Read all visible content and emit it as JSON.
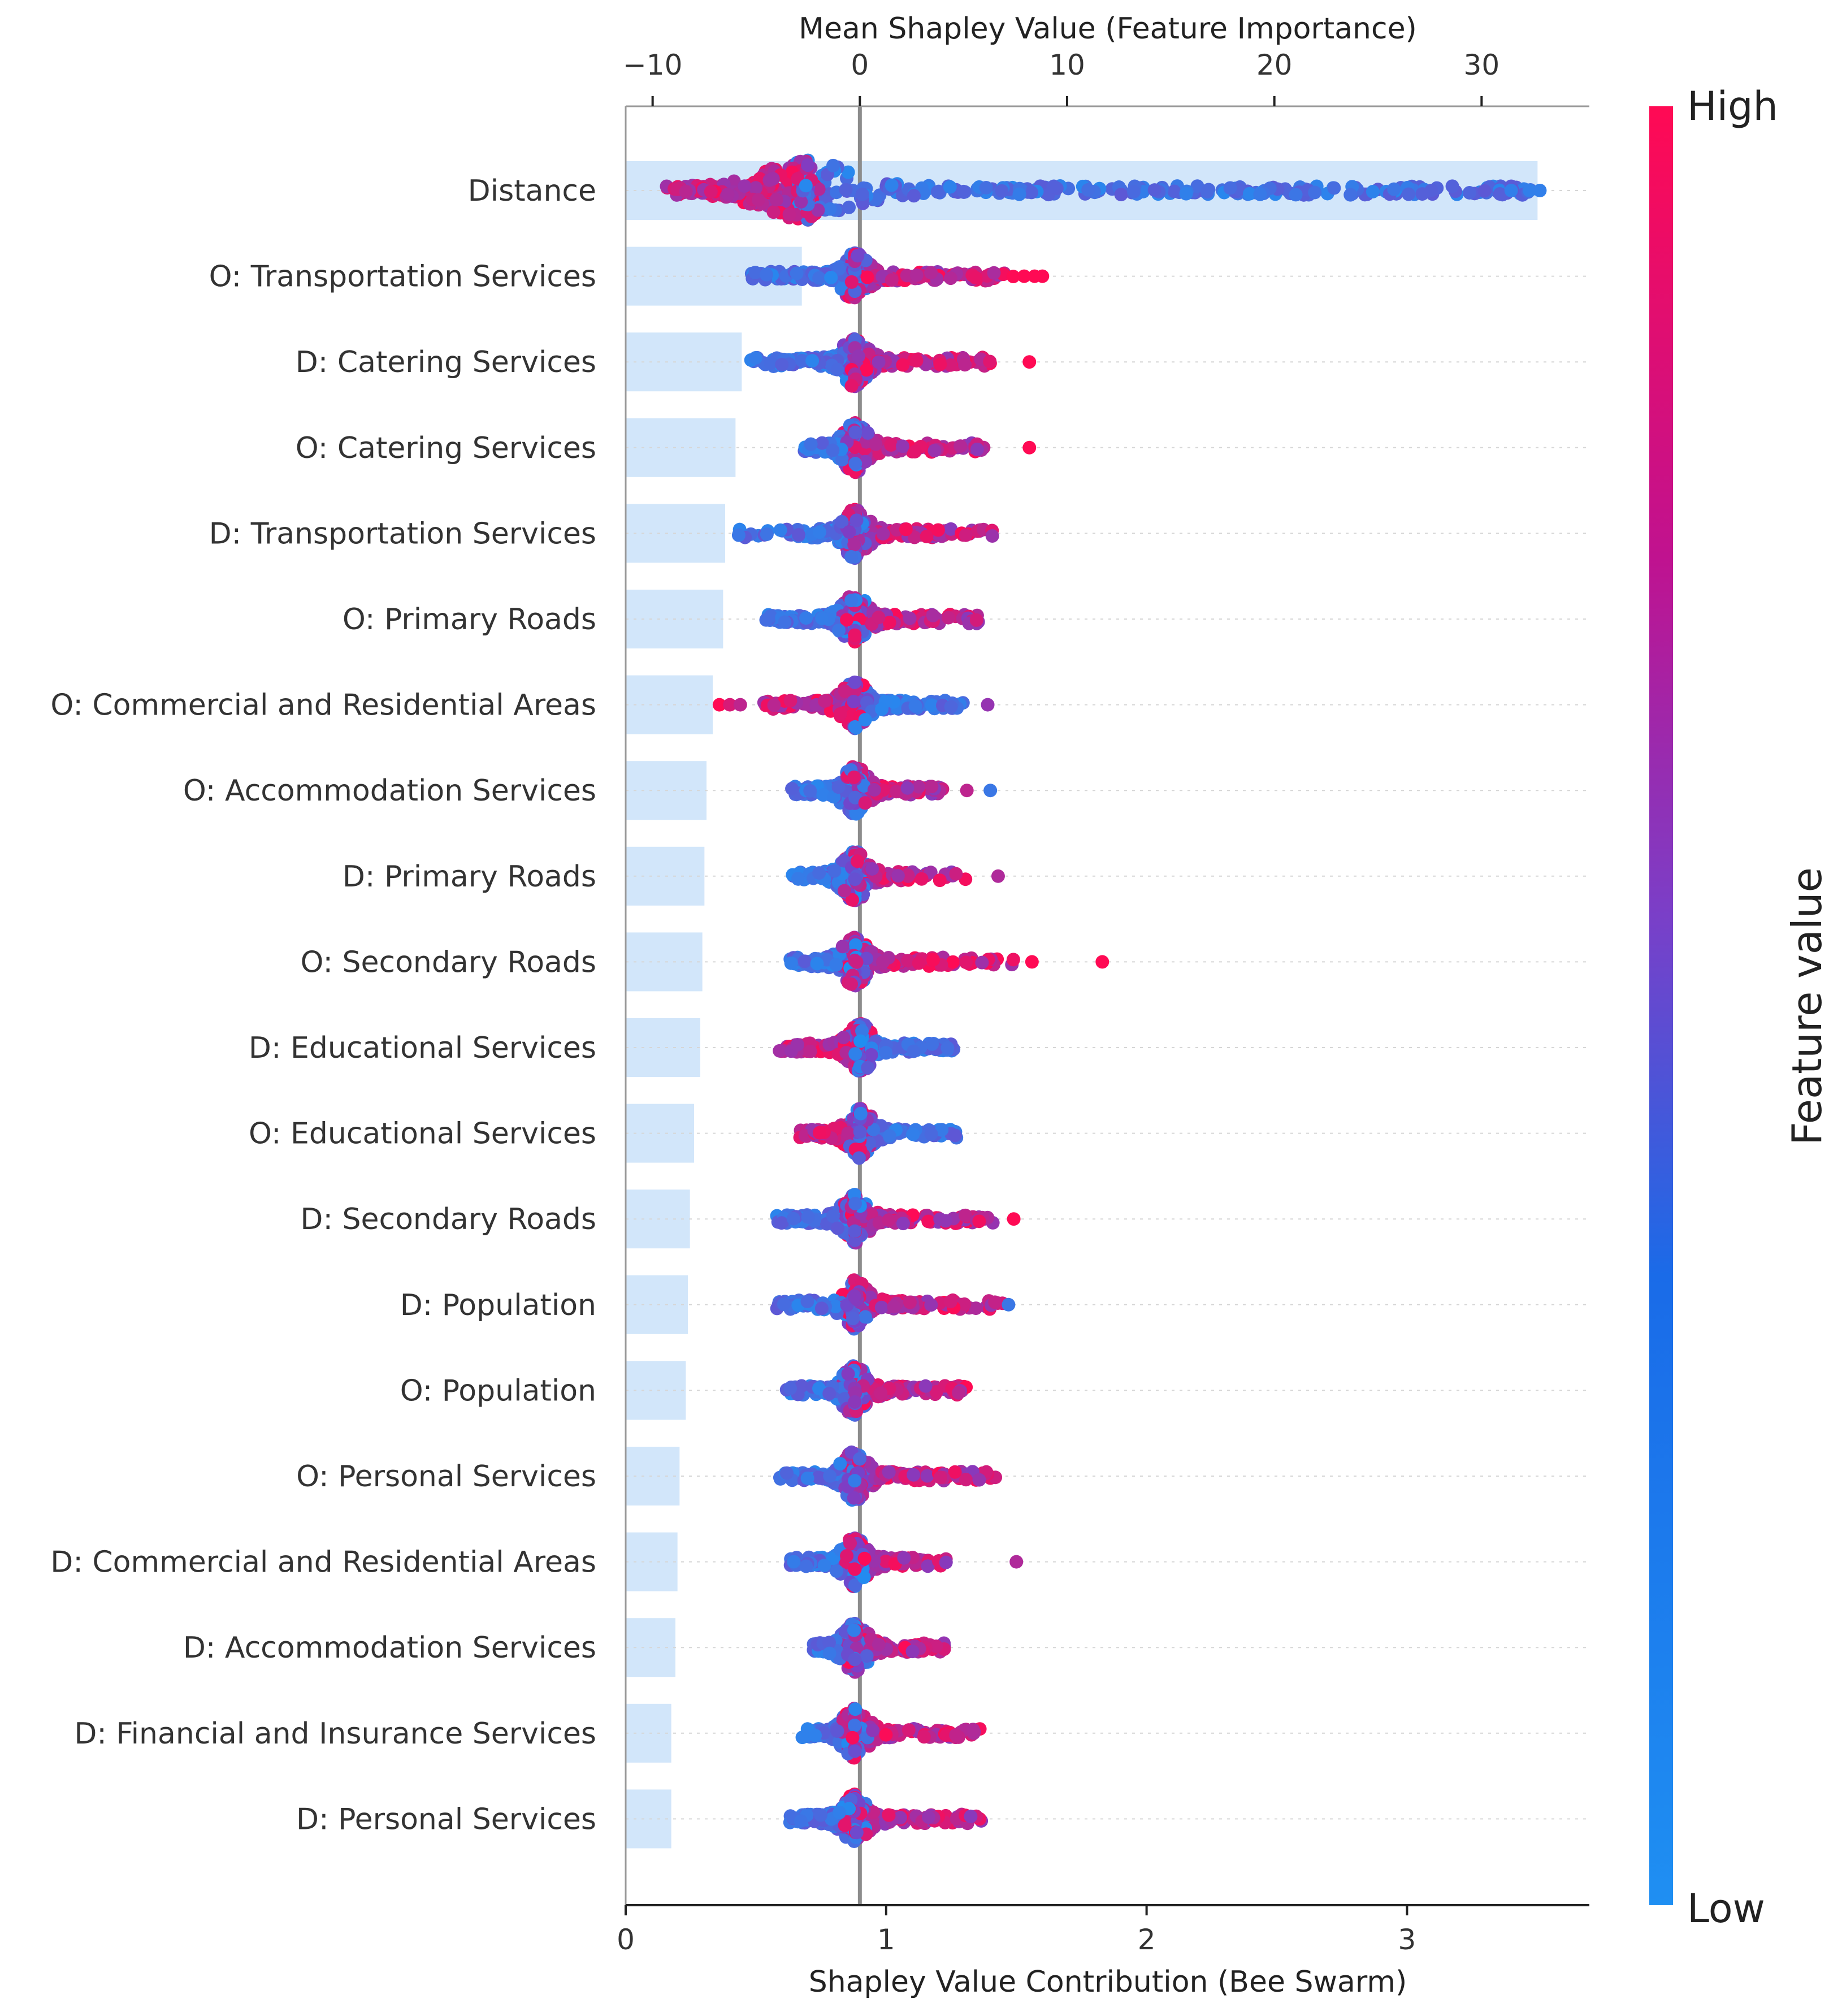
{
  "chart_data": {
    "type": "scatter",
    "subtype": "shap-beeswarm-with-mean-importance-bars",
    "bottom_axis": {
      "label": "Shapley Value Contribution (Bee Swarm)",
      "range": [
        0,
        3.7
      ],
      "ticks": [
        "0",
        "1",
        "2",
        "3"
      ]
    },
    "top_axis": {
      "label": "Mean Shapley Value (Feature Importance)",
      "range": [
        -11.3,
        35.2
      ],
      "ticks": [
        "−10",
        "0",
        "10",
        "20",
        "30"
      ]
    },
    "colorbar": {
      "title": "Feature value",
      "high_label": "High",
      "low_label": "Low",
      "low_color": "#1f8ff2",
      "mid_color": "#7a3fc8",
      "high_color": "#ff0a54"
    },
    "features": [
      {
        "name": "Distance",
        "mean_importance": 32.7,
        "spread_low": 0.15,
        "spread_high": 3.52,
        "center": 0.7,
        "high_dir": "left",
        "outliers": [
          {
            "v": 3.4,
            "c": 0.1
          },
          {
            "v": 3.47,
            "c": 0.1
          },
          {
            "v": 3.51,
            "c": 0.1
          }
        ]
      },
      {
        "name": "O: Transportation Services",
        "mean_importance": -2.8,
        "spread_low": 0.48,
        "spread_high": 1.49,
        "center": 0.88,
        "high_dir": "right",
        "outliers": [
          {
            "v": 1.53,
            "c": 1.0
          },
          {
            "v": 1.57,
            "c": 1.0
          },
          {
            "v": 1.6,
            "c": 1.0
          }
        ]
      },
      {
        "name": "D: Catering Services",
        "mean_importance": -5.7,
        "spread_low": 0.48,
        "spread_high": 1.4,
        "center": 0.88,
        "high_dir": "right",
        "outliers": [
          {
            "v": 1.55,
            "c": 1.0
          }
        ]
      },
      {
        "name": "O: Catering Services",
        "mean_importance": -6.0,
        "spread_low": 0.68,
        "spread_high": 1.4,
        "center": 0.88,
        "high_dir": "right",
        "outliers": [
          {
            "v": 1.55,
            "c": 1.0
          }
        ]
      },
      {
        "name": "D: Transportation Services",
        "mean_importance": -6.5,
        "spread_low": 0.43,
        "spread_high": 1.41,
        "center": 0.88,
        "high_dir": "right",
        "outliers": []
      },
      {
        "name": "O: Primary Roads",
        "mean_importance": -6.6,
        "spread_low": 0.53,
        "spread_high": 1.36,
        "center": 0.88,
        "high_dir": "right",
        "outliers": []
      },
      {
        "name": "O: Commercial and Residential Areas",
        "mean_importance": -7.1,
        "spread_low": 0.53,
        "spread_high": 1.3,
        "center": 0.88,
        "high_dir": "left",
        "outliers": [
          {
            "v": 0.36,
            "c": 1.0
          },
          {
            "v": 0.4,
            "c": 0.85
          },
          {
            "v": 0.44,
            "c": 0.75
          },
          {
            "v": 1.39,
            "c": 0.6
          }
        ]
      },
      {
        "name": "O: Accommodation Services",
        "mean_importance": -7.4,
        "spread_low": 0.63,
        "spread_high": 1.22,
        "center": 0.88,
        "high_dir": "right",
        "outliers": [
          {
            "v": 1.31,
            "c": 0.75
          },
          {
            "v": 1.4,
            "c": 0.15
          }
        ]
      },
      {
        "name": "D: Primary Roads",
        "mean_importance": -7.5,
        "spread_low": 0.63,
        "spread_high": 1.32,
        "center": 0.88,
        "high_dir": "right",
        "outliers": [
          {
            "v": 1.43,
            "c": 0.7
          }
        ]
      },
      {
        "name": "O: Secondary Roads",
        "mean_importance": -7.6,
        "spread_low": 0.63,
        "spread_high": 1.5,
        "center": 0.88,
        "high_dir": "right",
        "outliers": [
          {
            "v": 1.56,
            "c": 1.0
          },
          {
            "v": 1.83,
            "c": 1.0
          }
        ]
      },
      {
        "name": "D: Educational Services",
        "mean_importance": -7.7,
        "spread_low": 0.58,
        "spread_high": 1.27,
        "center": 0.9,
        "high_dir": "left",
        "outliers": []
      },
      {
        "name": "O: Educational Services",
        "mean_importance": -8.0,
        "spread_low": 0.65,
        "spread_high": 1.27,
        "center": 0.9,
        "high_dir": "left",
        "outliers": []
      },
      {
        "name": "D: Secondary Roads",
        "mean_importance": -8.2,
        "spread_low": 0.58,
        "spread_high": 1.41,
        "center": 0.88,
        "high_dir": "right",
        "outliers": [
          {
            "v": 1.49,
            "c": 1.0
          }
        ]
      },
      {
        "name": "D: Population",
        "mean_importance": -8.3,
        "spread_low": 0.58,
        "spread_high": 1.45,
        "center": 0.88,
        "high_dir": "right",
        "outliers": [
          {
            "v": 1.47,
            "c": 0.15
          }
        ]
      },
      {
        "name": "O: Population",
        "mean_importance": -8.4,
        "spread_low": 0.61,
        "spread_high": 1.33,
        "center": 0.88,
        "high_dir": "right",
        "outliers": []
      },
      {
        "name": "O: Personal Services",
        "mean_importance": -8.7,
        "spread_low": 0.59,
        "spread_high": 1.45,
        "center": 0.88,
        "high_dir": "right",
        "outliers": []
      },
      {
        "name": "D: Commercial and Residential Areas",
        "mean_importance": -8.8,
        "spread_low": 0.63,
        "spread_high": 1.23,
        "center": 0.88,
        "high_dir": "right",
        "outliers": [
          {
            "v": 1.5,
            "c": 0.7
          }
        ]
      },
      {
        "name": "D: Accommodation Services",
        "mean_importance": -8.9,
        "spread_low": 0.72,
        "spread_high": 1.23,
        "center": 0.88,
        "high_dir": "right",
        "outliers": []
      },
      {
        "name": "D: Financial and Insurance Services",
        "mean_importance": -9.1,
        "spread_low": 0.67,
        "spread_high": 1.39,
        "center": 0.88,
        "high_dir": "right",
        "outliers": []
      },
      {
        "name": "D: Personal Services",
        "mean_importance": -9.1,
        "spread_low": 0.63,
        "spread_high": 1.37,
        "center": 0.88,
        "high_dir": "right",
        "outliers": []
      }
    ]
  }
}
